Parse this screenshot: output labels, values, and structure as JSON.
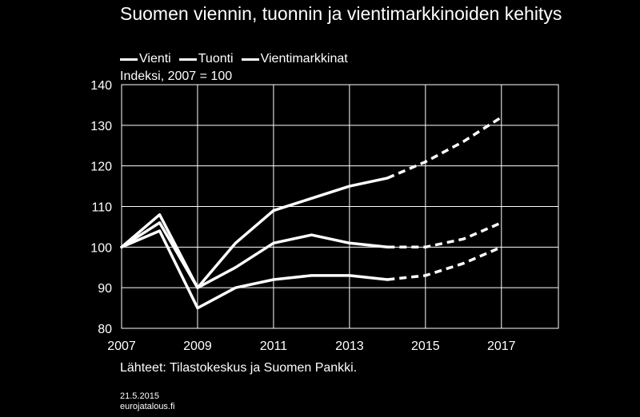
{
  "title": "Suomen viennin, tuonnin ja vientimarkkinoiden kehitys",
  "subtitle": "Indeksi, 2007 = 100",
  "source": "Lähteet: Tilastokeskus ja Suomen Pankki.",
  "footer": {
    "date": "21.5.2015",
    "site": "eurojatalous.fi"
  },
  "colors": {
    "background": "#000000",
    "lines": "#ffffff",
    "grid": "#ffffff"
  },
  "chart_data": {
    "type": "line",
    "title": "Suomen viennin, tuonnin ja vientimarkkinoiden kehitys",
    "subtitle": "Indeksi, 2007 = 100",
    "x": [
      2007,
      2008,
      2009,
      2010,
      2011,
      2012,
      2013,
      2014,
      2015,
      2016,
      2017
    ],
    "x_ticks": [
      2007,
      2009,
      2011,
      2013,
      2015,
      2017
    ],
    "xlim": [
      2007,
      2018.5
    ],
    "ylim": [
      80,
      140
    ],
    "y_ticks": [
      80,
      90,
      100,
      110,
      120,
      130,
      140
    ],
    "grid": true,
    "legend_position": "top-left",
    "forecast_from": 2014,
    "series": [
      {
        "name": "Vienti",
        "values": [
          100,
          106,
          90,
          95,
          101,
          103,
          101,
          100,
          100,
          102,
          106
        ],
        "style_actual": "solid",
        "style_forecast": "dashed"
      },
      {
        "name": "Tuonti",
        "values": [
          100,
          104,
          85,
          90,
          92,
          93,
          93,
          92,
          93,
          96,
          100
        ],
        "style_actual": "solid",
        "style_forecast": "dashed"
      },
      {
        "name": "Vientimarkkinat",
        "values": [
          100,
          108,
          90,
          101,
          109,
          112,
          115,
          117,
          121,
          126,
          132
        ],
        "style_actual": "solid",
        "style_forecast": "dashed"
      }
    ]
  }
}
